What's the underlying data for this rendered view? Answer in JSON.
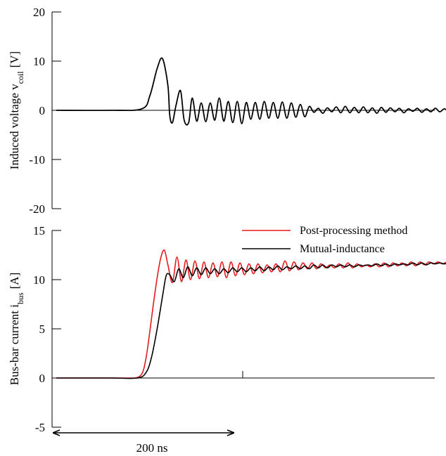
{
  "chart_data": [
    {
      "type": "line",
      "ylabel": "Induced voltage v",
      "ylabel_subscript": "coil",
      "ylabel_unit": "[V]",
      "ylim": [
        -20,
        20
      ],
      "yticks": [
        "20",
        "10",
        "0",
        "-10",
        "-20"
      ],
      "xlim_ns": [
        -25,
        490
      ],
      "grid": false,
      "series": [
        {
          "color": "#000000",
          "x": [
            0,
            60,
            95,
            104,
            112,
            118,
            124,
            126,
            129,
            133,
            138,
            142,
            147,
            151,
            156,
            161,
            166,
            171,
            176,
            181,
            186,
            191,
            196,
            201,
            206,
            211,
            216,
            221,
            226,
            231,
            236,
            241,
            246,
            251,
            256,
            261,
            266,
            271,
            276,
            281,
            286,
            291,
            296,
            301,
            306,
            311,
            316,
            321,
            326,
            331,
            336,
            341,
            346,
            351,
            356,
            361,
            366,
            371,
            376,
            381,
            386,
            391,
            396,
            401,
            406,
            411,
            416,
            421,
            426,
            431,
            436,
            441,
            446,
            451,
            456,
            461,
            466,
            471,
            476,
            481,
            486
          ],
          "y": [
            0,
            0,
            0.3,
            3,
            8.5,
            10.5,
            5,
            -1,
            -2.5,
            1,
            4,
            -2,
            -2.5,
            2.5,
            -2.2,
            1.5,
            -2.3,
            1.5,
            -2,
            2.5,
            -2.2,
            1.8,
            -2.5,
            1.8,
            -2.7,
            1.6,
            -1.8,
            1.6,
            -1.8,
            1.8,
            -1.6,
            1.6,
            -1.6,
            1.7,
            -1.6,
            1.5,
            -1.4,
            1.2,
            -1.3,
            0.8,
            -0.4,
            0.4,
            -0.6,
            0.5,
            -0.3,
            0.7,
            -0.5,
            0.8,
            -0.5,
            0.6,
            -0.5,
            0.7,
            -0.5,
            0.5,
            -0.6,
            0.6,
            -0.4,
            0.5,
            -0.3,
            0.4,
            -0.5,
            0.3,
            -0.2,
            0.4,
            -0.4,
            0.3,
            -0.3,
            0.4,
            -0.3,
            0.3,
            -0.3,
            0.3,
            -0.2,
            0.4,
            -0.3,
            0.3,
            -0.2,
            0.3,
            -0.2,
            0.3,
            0
          ]
        }
      ]
    },
    {
      "type": "line",
      "ylabel": "Bus-bar current i",
      "ylabel_subscript": "bus",
      "ylabel_unit": "[A]",
      "ylim": [
        -5,
        15
      ],
      "yticks": [
        "15",
        "10",
        "5",
        "0",
        "-5"
      ],
      "xlim_ns": [
        -25,
        490
      ],
      "grid": false,
      "legend_position": "top-right",
      "series": [
        {
          "name": "Post-processing method",
          "color": "#e8191c",
          "x": [
            0,
            20,
            40,
            60,
            80,
            90,
            96,
            100,
            104,
            108,
            112,
            116,
            120,
            124,
            129,
            134,
            139,
            144,
            149,
            154,
            159,
            164,
            169,
            174,
            179,
            184,
            189,
            194,
            199,
            204,
            209,
            214,
            219,
            224,
            229,
            234,
            239,
            244,
            249,
            254,
            259,
            264,
            269,
            274,
            279,
            284,
            289,
            294,
            299,
            304,
            309,
            314,
            319,
            324,
            329,
            334,
            339,
            344,
            349,
            354,
            359,
            364,
            369,
            374,
            379,
            384,
            389,
            394,
            399,
            404,
            409,
            414,
            419,
            424,
            429,
            434,
            439,
            444,
            449,
            454,
            459,
            464,
            469,
            474,
            479,
            484,
            486
          ],
          "y": [
            0,
            0,
            0,
            0,
            0,
            0.05,
            0.6,
            2.2,
            4.8,
            7.6,
            10.2,
            12.2,
            13,
            11.5,
            9.7,
            12.3,
            9.8,
            12,
            10,
            11.9,
            10.1,
            11.8,
            10.2,
            11.7,
            10.3,
            11.8,
            10.2,
            11.8,
            10.4,
            11.7,
            10.5,
            11.6,
            10.6,
            11.6,
            10.7,
            11.5,
            10.8,
            11.6,
            10.8,
            11.9,
            10.9,
            11.8,
            11,
            11.7,
            11.1,
            11.7,
            11.1,
            11.6,
            11.2,
            11.5,
            11.2,
            11.6,
            11.2,
            11.7,
            11.2,
            11.6,
            11.3,
            11.5,
            11.3,
            11.6,
            11.3,
            11.7,
            11.3,
            11.7,
            11.4,
            11.7,
            11.4,
            11.8,
            11.4,
            11.8,
            11.5,
            11.8,
            11.6,
            11.8,
            11.6,
            11.8,
            11.6,
            11.8,
            11.7,
            11.8,
            11.7,
            11.9,
            11.7,
            11.9,
            11.8,
            12,
            11.9
          ]
        },
        {
          "name": "Mutual-inductance",
          "color": "#000000",
          "x": [
            0,
            60,
            90,
            100,
            106,
            112,
            118,
            122,
            126,
            131,
            136,
            141,
            146,
            151,
            156,
            161,
            166,
            171,
            176,
            181,
            186,
            191,
            196,
            201,
            206,
            211,
            216,
            221,
            226,
            231,
            236,
            241,
            246,
            251,
            256,
            261,
            266,
            271,
            276,
            281,
            286,
            291,
            296,
            301,
            306,
            311,
            316,
            321,
            326,
            331,
            336,
            341,
            346,
            351,
            356,
            361,
            366,
            371,
            376,
            381,
            386,
            391,
            396,
            401,
            406,
            411,
            416,
            421,
            426,
            431,
            436,
            441,
            446,
            451,
            456,
            461,
            466,
            471,
            476,
            481,
            486
          ],
          "y": [
            0,
            0,
            0,
            0.6,
            2.2,
            5,
            8.3,
            10.4,
            10.5,
            9.8,
            11.1,
            10.2,
            11.3,
            10.4,
            11.2,
            10.5,
            11.2,
            10.6,
            11.1,
            10.6,
            11.1,
            10.7,
            11.2,
            10.8,
            11.2,
            10.8,
            11.2,
            10.9,
            11.3,
            10.9,
            11.3,
            11,
            11.4,
            11,
            11.3,
            11.1,
            11.4,
            11.1,
            11.4,
            11.1,
            11.5,
            11.2,
            11.5,
            11.2,
            11.5,
            11.3,
            11.5,
            11.3,
            11.5,
            11.3,
            11.5,
            11.4,
            11.5,
            11.4,
            11.6,
            11.4,
            11.6,
            11.4,
            11.6,
            11.5,
            11.6,
            11.5,
            11.7,
            11.5,
            11.7,
            11.5,
            11.7,
            11.6,
            11.7,
            11.6,
            11.7,
            11.6,
            11.8,
            11.6,
            11.8,
            11.7,
            11.8,
            11.7,
            11.8,
            11.8,
            11.9
          ]
        }
      ]
    }
  ],
  "annotation": {
    "label": "200 ns",
    "span_ns": 200
  }
}
